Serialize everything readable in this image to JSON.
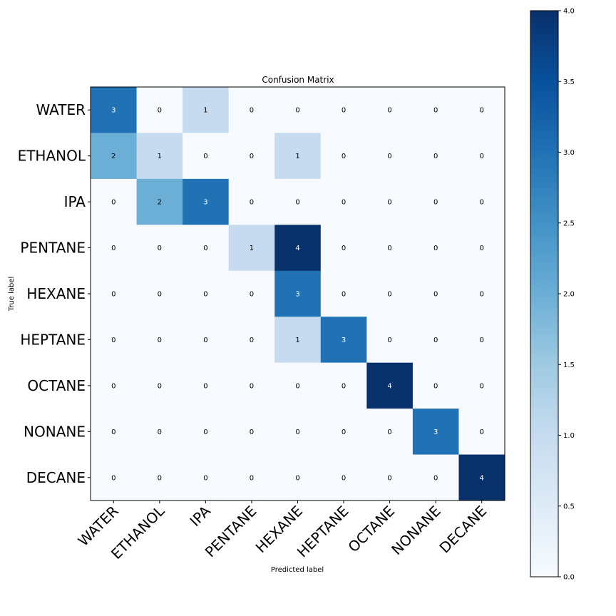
{
  "chart_data": {
    "type": "heatmap",
    "title": "Confusion Matrix",
    "xlabel": "Predicted label",
    "ylabel": "True label",
    "x_categories": [
      "WATER",
      "ETHANOL",
      "IPA",
      "PENTANE",
      "HEXANE",
      "HEPTANE",
      "OCTANE",
      "NONANE",
      "DECANE"
    ],
    "y_categories": [
      "WATER",
      "ETHANOL",
      "IPA",
      "PENTANE",
      "HEXANE",
      "HEPTANE",
      "OCTANE",
      "NONANE",
      "DECANE"
    ],
    "values": [
      [
        3,
        0,
        1,
        0,
        0,
        0,
        0,
        0,
        0
      ],
      [
        2,
        1,
        0,
        0,
        1,
        0,
        0,
        0,
        0
      ],
      [
        0,
        2,
        3,
        0,
        0,
        0,
        0,
        0,
        0
      ],
      [
        0,
        0,
        0,
        1,
        4,
        0,
        0,
        0,
        0
      ],
      [
        0,
        0,
        0,
        0,
        3,
        0,
        0,
        0,
        0
      ],
      [
        0,
        0,
        0,
        0,
        1,
        3,
        0,
        0,
        0
      ],
      [
        0,
        0,
        0,
        0,
        0,
        0,
        4,
        0,
        0
      ],
      [
        0,
        0,
        0,
        0,
        0,
        0,
        0,
        3,
        0
      ],
      [
        0,
        0,
        0,
        0,
        0,
        0,
        0,
        0,
        4
      ]
    ],
    "colorbar": {
      "range": [
        0.0,
        4.0
      ],
      "ticks": [
        "0.0",
        "0.5",
        "1.0",
        "1.5",
        "2.0",
        "2.5",
        "3.0",
        "3.5",
        "4.0"
      ],
      "colormap": "Blues"
    }
  }
}
